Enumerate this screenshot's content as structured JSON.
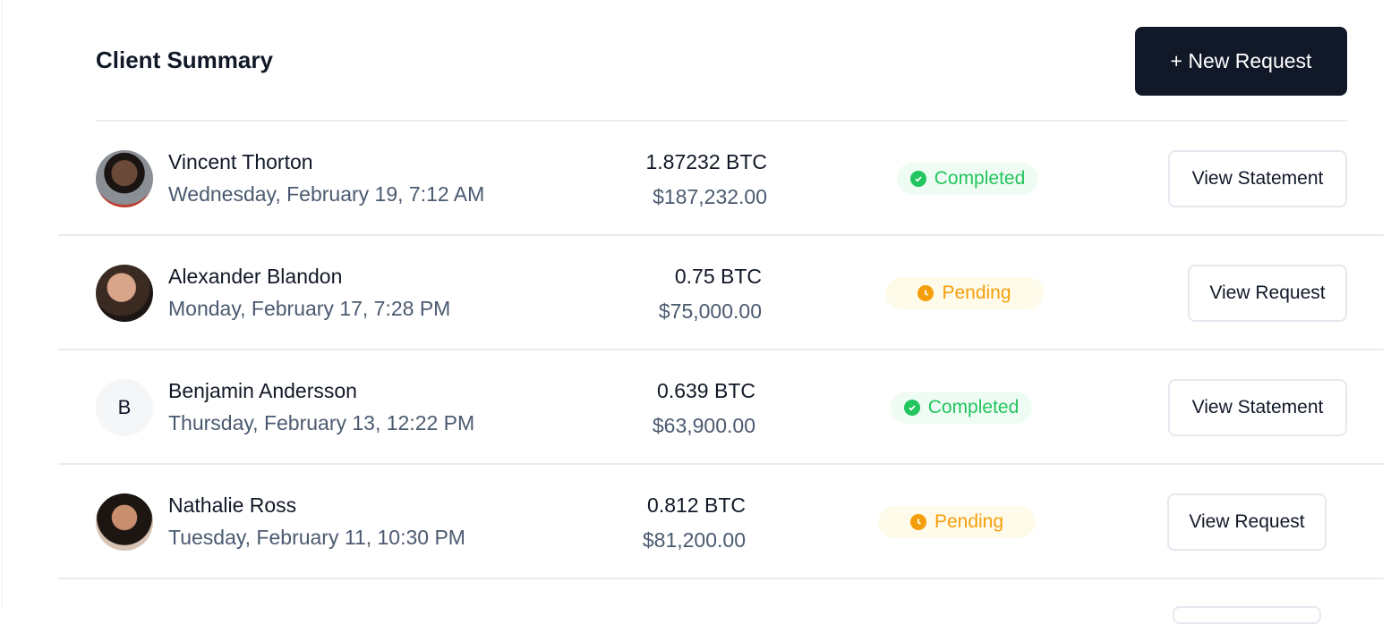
{
  "header": {
    "title": "Client Summary",
    "new_request_label": "+ New Request"
  },
  "colors": {
    "completed": "#22c55e",
    "pending": "#f59e0b",
    "primary": "#111827"
  },
  "rows": [
    {
      "name": "Vincent Thorton",
      "date": "Wednesday, February 19, 7:12 AM",
      "btc": "1.87232 BTC",
      "usd": "$187,232.00",
      "status": "Completed",
      "action": "View Statement",
      "avatar": "photo"
    },
    {
      "name": "Alexander Blandon",
      "date": "Monday, February 17, 7:28 PM",
      "btc": "0.75 BTC",
      "usd": "$75,000.00",
      "status": "Pending",
      "action": "View Request",
      "avatar": "photo"
    },
    {
      "name": "Benjamin Andersson",
      "date": "Thursday, February 13, 12:22 PM",
      "btc": "0.639 BTC",
      "usd": "$63,900.00",
      "status": "Completed",
      "action": "View Statement",
      "avatar": "B"
    },
    {
      "name": "Nathalie Ross",
      "date": "Tuesday, February 11, 10:30 PM",
      "btc": "0.812 BTC",
      "usd": "$81,200.00",
      "status": "Pending",
      "action": "View Request",
      "avatar": "photo"
    }
  ]
}
